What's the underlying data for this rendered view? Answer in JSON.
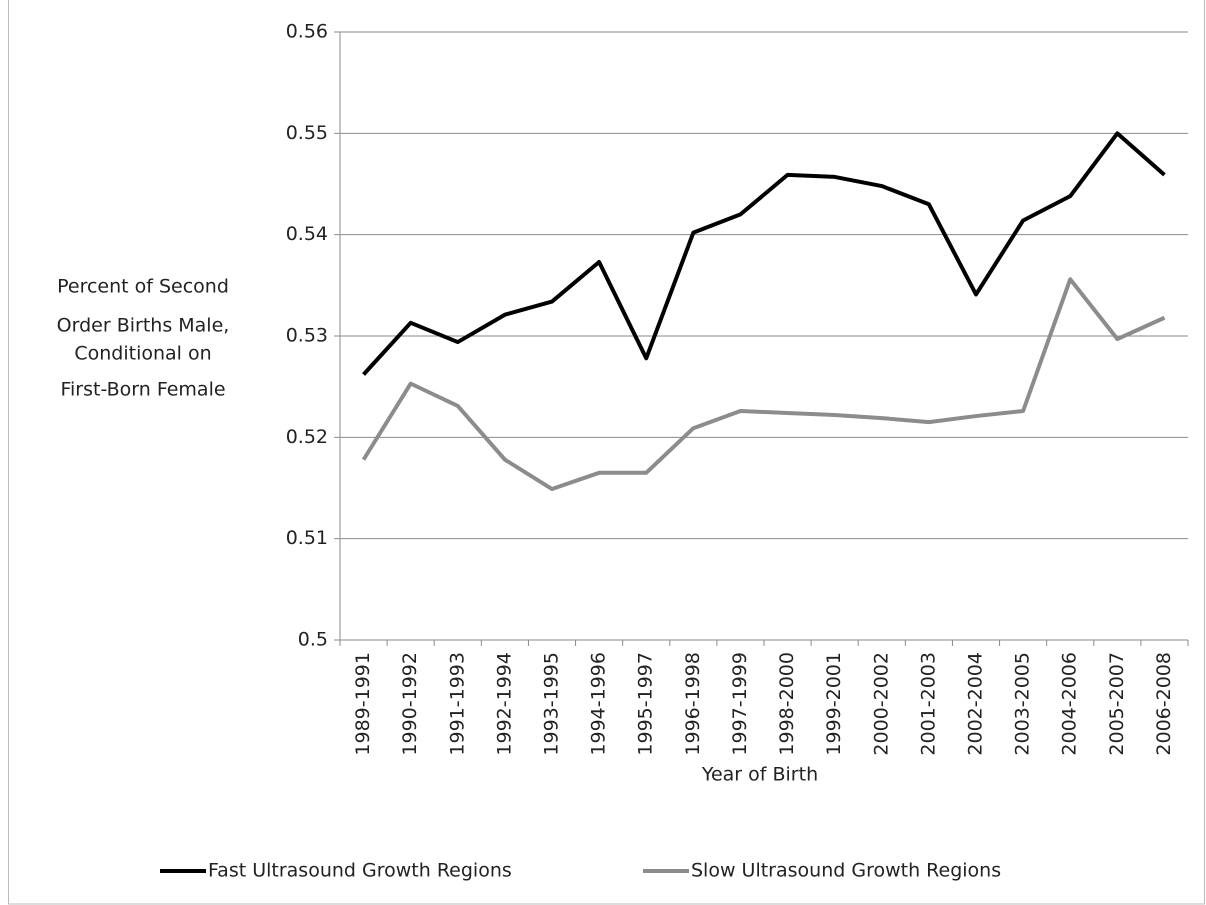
{
  "chart_data": {
    "type": "line",
    "x_label": "Year of Birth",
    "y_label": [
      "Percent of Second",
      "Order Births Male,",
      "Conditional on",
      "First-Born Female"
    ],
    "categories": [
      "1989-1991",
      "1990-1992",
      "1991-1993",
      "1992-1994",
      "1993-1995",
      "1994-1996",
      "1995-1997",
      "1996-1998",
      "1997-1999",
      "1998-2000",
      "1999-2001",
      "2000-2002",
      "2001-2003",
      "2002-2004",
      "2003-2005",
      "2004-2006",
      "2005-2007",
      "2006-2008"
    ],
    "series": [
      {
        "name": "Fast Ultrasound Growth Regions",
        "color": "#000000",
        "values": [
          0.5262,
          0.5313,
          0.5294,
          0.5321,
          0.5334,
          0.5373,
          0.5278,
          0.5402,
          0.542,
          0.5459,
          0.5457,
          0.5448,
          0.543,
          0.5341,
          0.5414,
          0.5438,
          0.55,
          0.5459
        ]
      },
      {
        "name": "Slow Ultrasound Growth Regions",
        "color": "#8c8c8c",
        "values": [
          0.5178,
          0.5253,
          0.5231,
          0.5178,
          0.5149,
          0.5165,
          0.5165,
          0.5209,
          0.5226,
          0.5224,
          0.5222,
          0.5219,
          0.5215,
          0.5221,
          0.5226,
          0.5356,
          0.5297,
          0.5318
        ]
      }
    ],
    "ylim": [
      0.5,
      0.56
    ],
    "yticks": [
      0.5,
      0.51,
      0.52,
      0.53,
      0.54,
      0.55,
      0.56
    ],
    "grid": true,
    "legend": "bottom"
  }
}
